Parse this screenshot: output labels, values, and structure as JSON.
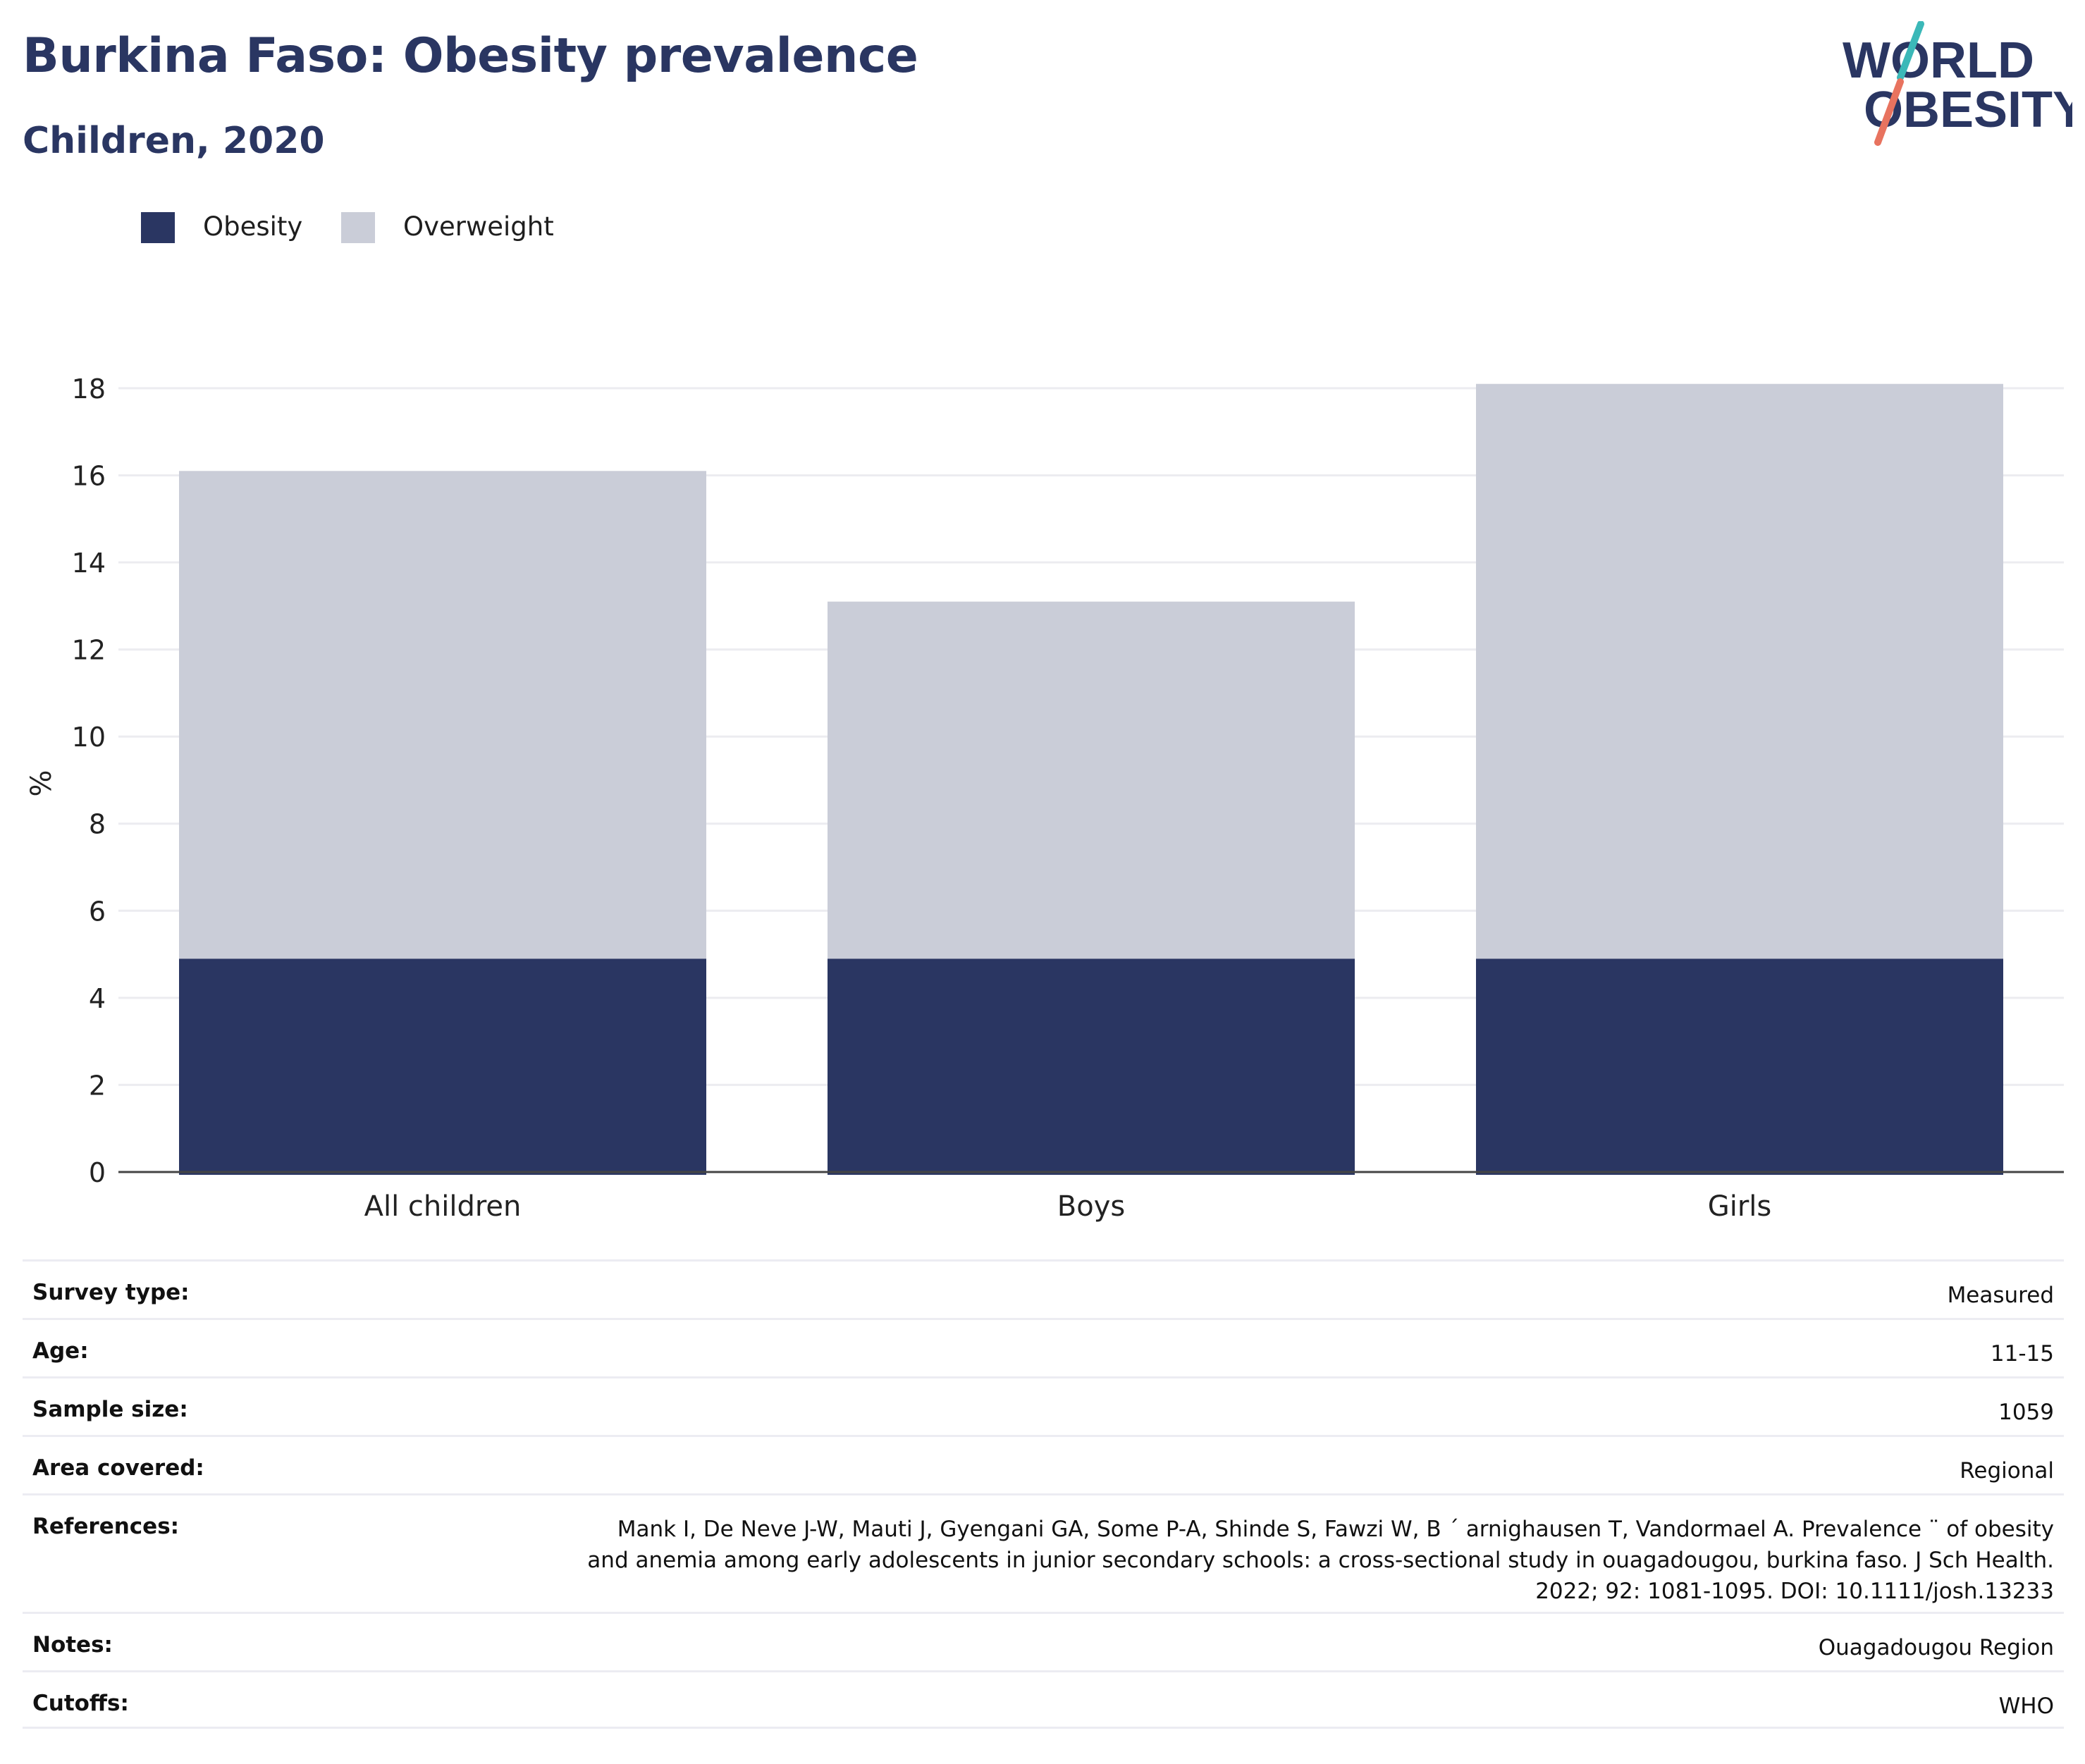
{
  "title": "Burkina Faso: Obesity prevalence",
  "subtitle": "Children, 2020",
  "logo": {
    "line1": "WORLD",
    "line2": "OBESITY"
  },
  "colors": {
    "obesity": "#2a3662",
    "overweight": "#cacdd8",
    "title": "#2a3662",
    "logo_teal": "#3bb8b8",
    "logo_coral": "#e8735f"
  },
  "legend": [
    {
      "label": "Obesity",
      "color": "#2a3662"
    },
    {
      "label": "Overweight",
      "color": "#cacdd8"
    }
  ],
  "chart_data": {
    "type": "bar",
    "stacked": true,
    "categories": [
      "All children",
      "Boys",
      "Girls"
    ],
    "series": [
      {
        "name": "Obesity",
        "values": [
          4.9,
          4.9,
          4.9
        ]
      },
      {
        "name": "Overweight",
        "values": [
          11.2,
          8.2,
          13.2
        ]
      }
    ],
    "totals": [
      16.1,
      13.1,
      18.1
    ],
    "ylabel": "%",
    "xlabel": "",
    "ylim": [
      0,
      18.5
    ],
    "yticks": [
      0,
      2,
      4,
      6,
      8,
      10,
      12,
      14,
      16,
      18
    ],
    "grid": true,
    "legend_position": "top-left"
  },
  "info_rows": [
    {
      "key": "Survey type:",
      "value": "Measured"
    },
    {
      "key": "Age:",
      "value": "11-15"
    },
    {
      "key": "Sample size:",
      "value": "1059"
    },
    {
      "key": "Area covered:",
      "value": "Regional"
    },
    {
      "key": "References:",
      "value": "Mank I, De Neve J-W, Mauti J, Gyengani GA, Some P-A, Shinde S, Fawzi W, B ´ arnighausen T, Vandormael A. Prevalence ¨ of obesity\nand anemia among early adolescents in junior secondary schools: a cross-sectional study in ouagadougou, burkina faso. J Sch Health.\n2022; 92: 1081-1095. DOI: 10.1111/josh.13233"
    },
    {
      "key": "Notes:",
      "value": "Ouagadougou Region"
    },
    {
      "key": "Cutoffs:",
      "value": "WHO"
    }
  ]
}
